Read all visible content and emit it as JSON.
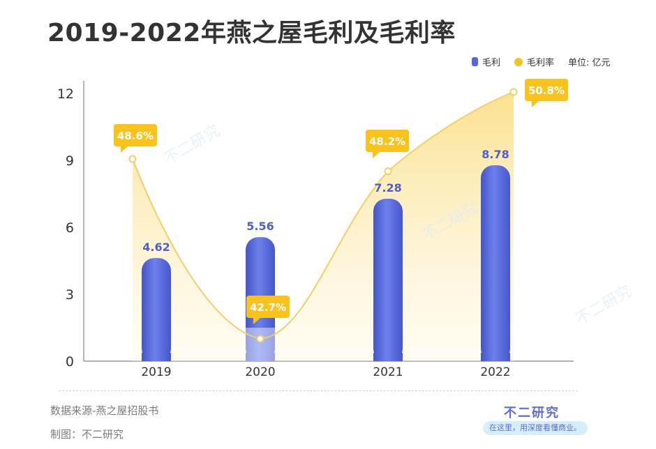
{
  "watermark": "不二研究",
  "chart_data": {
    "type": "bar",
    "title": "2019-2022年燕之屋毛利及毛利率",
    "unit_label": "单位: 亿元",
    "categories": [
      "2019",
      "2020",
      "2021",
      "2022"
    ],
    "series": [
      {
        "name": "毛利",
        "values": [
          4.62,
          5.56,
          7.28,
          8.78
        ],
        "labels": [
          "4.62",
          "5.56",
          "7.28",
          "8.78"
        ],
        "color": "#5468d8"
      },
      {
        "name": "毛利率",
        "values": [
          48.6,
          42.7,
          48.2,
          50.8
        ],
        "labels": [
          "48.6%",
          "42.7%",
          "48.2%",
          "50.8%"
        ],
        "color": "#f7c41e"
      }
    ],
    "y_ticks": [
      "0",
      "3",
      "6",
      "9",
      "12"
    ],
    "ylim": [
      0,
      12
    ],
    "rate_range": [
      42.7,
      50.8
    ],
    "grid": false,
    "legend_position": "top-right"
  },
  "footer": {
    "source": "数据来源-燕之屋招股书",
    "maker": "制图：不二研究",
    "brand": "不二研究",
    "slogan": "在这里，用深度看懂商业。"
  }
}
